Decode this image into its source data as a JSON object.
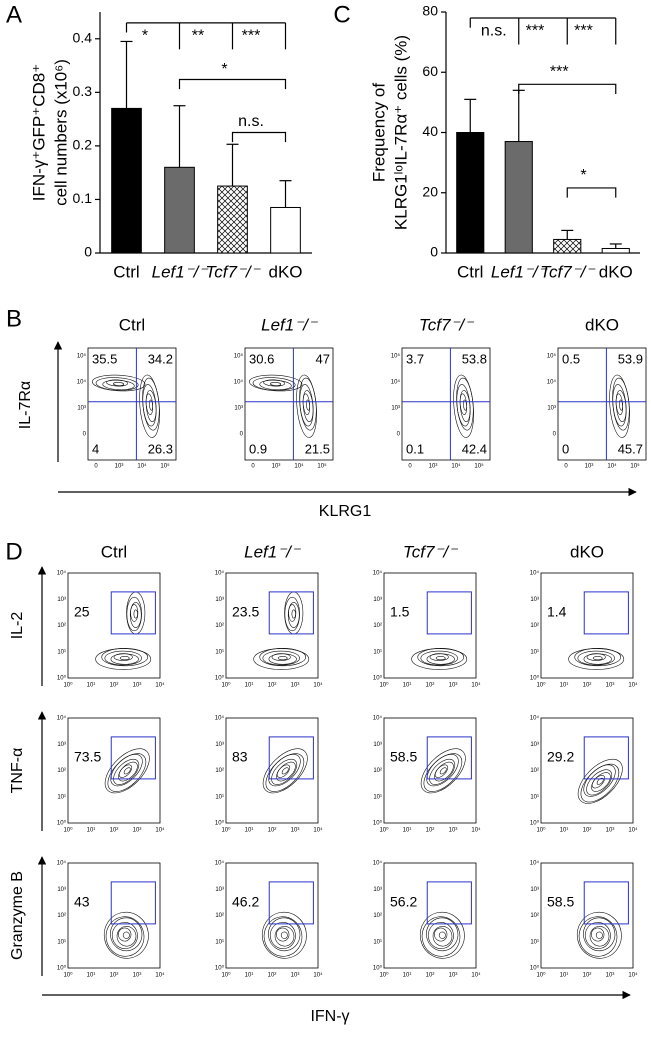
{
  "chart_data": [
    {
      "type": "bar",
      "panel": "A",
      "y_label": [
        "IFN-γ⁺GFP⁺CD8⁺",
        "cell numbers (x10⁶)"
      ],
      "categories": [
        "Ctrl",
        "Lef1⁻/⁻",
        "Tcf7⁻/⁻",
        "dKO"
      ],
      "values": [
        0.27,
        0.16,
        0.125,
        0.085
      ],
      "errors": [
        0.125,
        0.115,
        0.078,
        0.05
      ],
      "colors": [
        "#000000",
        "#6b6b6b",
        "#ffffff",
        "#ffffff"
      ],
      "hatch": [
        false,
        false,
        true,
        false
      ],
      "ylim": [
        0,
        0.45
      ],
      "yticks": [
        0,
        0.1,
        0.2,
        0.3,
        0.4
      ],
      "annotations": [
        "*",
        "**",
        "***",
        "*",
        "n.s."
      ]
    },
    {
      "type": "bar",
      "panel": "C",
      "y_label": [
        "Frequency of",
        "KLRG1ˡᵒIL-7Rα⁺ cells (%)"
      ],
      "categories": [
        "Ctrl",
        "Lef1⁻/⁻",
        "Tcf7⁻/⁻",
        "dKO"
      ],
      "values": [
        40,
        37,
        4.5,
        1.5
      ],
      "errors": [
        11,
        17,
        3,
        1.5
      ],
      "colors": [
        "#000000",
        "#6b6b6b",
        "#ffffff",
        "#ffffff"
      ],
      "hatch": [
        false,
        false,
        true,
        false
      ],
      "ylim": [
        0,
        80
      ],
      "yticks": [
        0,
        20,
        40,
        60,
        80
      ],
      "annotations": [
        "n.s.",
        "***",
        "***",
        "***",
        "*"
      ]
    }
  ],
  "flow_b": {
    "panel": "B",
    "titles": [
      "Ctrl",
      "Lef1⁻/⁻",
      "Tcf7⁻/⁻",
      "dKO"
    ],
    "y_label": "IL-7Rα",
    "x_label": "KLRG1",
    "y_ticks": [
      "10⁵",
      "10⁴",
      "10³",
      "0"
    ],
    "x_ticks": [
      "0",
      "10³",
      "10⁴",
      "10⁵"
    ],
    "quadrants": [
      [
        35.5,
        34.2,
        4,
        26.3
      ],
      [
        30.6,
        47,
        0.9,
        21.5
      ],
      [
        3.7,
        53.8,
        0.1,
        42.4
      ],
      [
        0.5,
        53.9,
        0,
        45.7
      ]
    ]
  },
  "flow_d": {
    "panel": "D",
    "titles": [
      "Ctrl",
      "Lef1⁻/⁻",
      "Tcf7⁻/⁻",
      "dKO"
    ],
    "x_label": "IFN-γ",
    "ticks": [
      "10⁰",
      "10¹",
      "10²",
      "10³",
      "10⁴"
    ],
    "rows": [
      {
        "label": "IL-2",
        "gates": [
          25,
          23.5,
          1.5,
          1.4
        ]
      },
      {
        "label": "TNF-α",
        "gates": [
          73.5,
          83,
          58.5,
          29.2
        ]
      },
      {
        "label": "Granzyme B",
        "gates": [
          43,
          46.2,
          56.2,
          58.5
        ]
      }
    ]
  }
}
